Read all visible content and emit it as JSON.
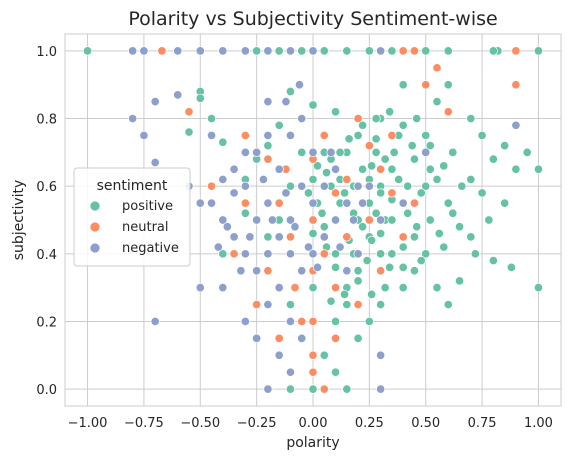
{
  "chart_data": {
    "type": "scatter",
    "title": "Polarity vs Subjectivity Sentiment-wise",
    "xlabel": "polarity",
    "ylabel": "subjectivity",
    "xlim": [
      -1.1,
      1.1
    ],
    "ylim": [
      -0.05,
      1.05
    ],
    "xticks": [
      "−1.00",
      "−0.75",
      "−0.50",
      "−0.25",
      "0.00",
      "0.25",
      "0.50",
      "0.75",
      "1.00"
    ],
    "xtick_values": [
      -1.0,
      -0.75,
      -0.5,
      -0.25,
      0.0,
      0.25,
      0.5,
      0.75,
      1.0
    ],
    "yticks": [
      "0.0",
      "0.2",
      "0.4",
      "0.6",
      "0.8",
      "1.0"
    ],
    "ytick_values": [
      0.0,
      0.2,
      0.4,
      0.6,
      0.8,
      1.0
    ],
    "grid": true,
    "legend": {
      "title": "sentiment",
      "placement": "center-left"
    },
    "series": [
      {
        "name": "positive",
        "color": "#66c2a5",
        "points": [
          [
            -1.0,
            1.0
          ],
          [
            -0.55,
            0.76
          ],
          [
            -0.5,
            0.88
          ],
          [
            -0.5,
            0.86
          ],
          [
            -0.45,
            0.8
          ],
          [
            -0.4,
            0.73
          ],
          [
            -0.4,
            0.4
          ],
          [
            -0.35,
            0.58
          ],
          [
            -0.3,
            0.52
          ],
          [
            -0.3,
            0.62
          ],
          [
            -0.25,
            0.68
          ],
          [
            -0.2,
            0.72
          ],
          [
            -0.2,
            0.45
          ],
          [
            -0.15,
            0.78
          ],
          [
            -0.15,
            0.5
          ],
          [
            -0.1,
            0.88
          ],
          [
            -0.1,
            0.6
          ],
          [
            -0.05,
            0.7
          ],
          [
            0.0,
            0.84
          ],
          [
            0.0,
            0.62
          ],
          [
            0.02,
            0.55
          ],
          [
            0.05,
            0.7
          ],
          [
            0.05,
            0.48
          ],
          [
            0.08,
            0.6
          ],
          [
            0.1,
            0.82
          ],
          [
            0.1,
            0.65
          ],
          [
            0.1,
            0.4
          ],
          [
            0.12,
            0.55
          ],
          [
            0.15,
            0.7
          ],
          [
            0.15,
            0.3
          ],
          [
            0.18,
            0.6
          ],
          [
            0.2,
            0.5
          ],
          [
            0.2,
            0.75
          ],
          [
            0.22,
            0.65
          ],
          [
            0.25,
            0.55
          ],
          [
            0.25,
            0.45
          ],
          [
            0.28,
            0.7
          ],
          [
            0.3,
            0.6
          ],
          [
            0.3,
            0.8
          ],
          [
            0.32,
            0.5
          ],
          [
            0.35,
            0.65
          ],
          [
            0.35,
            0.4
          ],
          [
            0.38,
            0.75
          ],
          [
            0.4,
            0.55
          ],
          [
            0.4,
            0.9
          ],
          [
            0.42,
            0.6
          ],
          [
            0.45,
            0.68
          ],
          [
            0.45,
            0.45
          ],
          [
            0.5,
            0.75
          ],
          [
            0.5,
            0.6
          ],
          [
            0.52,
            0.5
          ],
          [
            0.55,
            0.85
          ],
          [
            0.55,
            0.62
          ],
          [
            0.58,
            0.42
          ],
          [
            0.6,
            0.9
          ],
          [
            0.6,
            0.55
          ],
          [
            0.62,
            0.7
          ],
          [
            0.65,
            0.48
          ],
          [
            0.65,
            0.32
          ],
          [
            0.7,
            0.62
          ],
          [
            0.7,
            0.8
          ],
          [
            0.72,
            0.4
          ],
          [
            0.75,
            0.58
          ],
          [
            0.75,
            0.75
          ],
          [
            0.78,
            0.5
          ],
          [
            0.8,
            0.68
          ],
          [
            0.8,
            0.38
          ],
          [
            0.85,
            0.72
          ],
          [
            0.85,
            0.55
          ],
          [
            0.88,
            0.36
          ],
          [
            0.9,
            0.65
          ],
          [
            1.0,
            0.65
          ],
          [
            1.0,
            0.3
          ],
          [
            0.95,
            0.7
          ],
          [
            0.82,
            1.0
          ],
          [
            1.0,
            1.0
          ],
          [
            0.8,
            1.0
          ],
          [
            0.6,
            1.0
          ],
          [
            0.5,
            1.0
          ],
          [
            0.35,
            1.0
          ],
          [
            0.25,
            1.0
          ],
          [
            0.15,
            1.0
          ],
          [
            0.05,
            1.0
          ],
          [
            -0.05,
            1.0
          ],
          [
            -0.15,
            1.0
          ],
          [
            -0.25,
            1.0
          ],
          [
            0.0,
            0.0
          ],
          [
            0.15,
            0.0
          ],
          [
            -0.1,
            0.0
          ],
          [
            0.1,
            0.05
          ],
          [
            0.05,
            0.1
          ],
          [
            0.2,
            0.15
          ],
          [
            0.25,
            0.2
          ],
          [
            0.3,
            0.25
          ],
          [
            0.4,
            0.3
          ],
          [
            0.45,
            0.35
          ],
          [
            0.1,
            0.2
          ],
          [
            0.15,
            0.25
          ],
          [
            0.2,
            0.35
          ],
          [
            0.0,
            0.3
          ],
          [
            -0.05,
            0.15
          ],
          [
            -0.1,
            0.25
          ],
          [
            0.3,
            0.4
          ],
          [
            0.35,
            0.5
          ],
          [
            0.6,
            0.25
          ],
          [
            0.55,
            0.3
          ],
          [
            0.7,
            0.45
          ],
          [
            0.25,
            0.62
          ],
          [
            0.3,
            0.58
          ],
          [
            0.35,
            0.56
          ],
          [
            0.28,
            0.52
          ],
          [
            0.22,
            0.48
          ],
          [
            0.18,
            0.52
          ],
          [
            0.12,
            0.62
          ],
          [
            0.08,
            0.68
          ],
          [
            0.32,
            0.68
          ],
          [
            0.38,
            0.62
          ],
          [
            0.42,
            0.52
          ],
          [
            0.48,
            0.58
          ],
          [
            0.2,
            0.6
          ],
          [
            0.26,
            0.66
          ],
          [
            0.16,
            0.44
          ],
          [
            0.1,
            0.36
          ],
          [
            0.06,
            0.42
          ],
          [
            0.24,
            0.38
          ],
          [
            0.4,
            0.42
          ],
          [
            0.46,
            0.48
          ],
          [
            0.5,
            0.4
          ],
          [
            0.52,
            0.65
          ],
          [
            0.44,
            0.72
          ],
          [
            0.36,
            0.7
          ],
          [
            0.28,
            0.74
          ],
          [
            0.14,
            0.58
          ],
          [
            0.04,
            0.52
          ],
          [
            0.0,
            0.46
          ],
          [
            -0.02,
            0.58
          ],
          [
            0.3,
            0.46
          ],
          [
            0.34,
            0.36
          ],
          [
            0.2,
            0.32
          ],
          [
            0.14,
            0.28
          ],
          [
            0.08,
            0.26
          ],
          [
            0.26,
            0.28
          ],
          [
            0.32,
            0.3
          ],
          [
            0.4,
            0.36
          ],
          [
            0.48,
            0.38
          ],
          [
            0.56,
            0.46
          ],
          [
            0.62,
            0.52
          ],
          [
            0.66,
            0.6
          ],
          [
            0.58,
            0.66
          ],
          [
            0.52,
            0.72
          ],
          [
            0.46,
            0.8
          ],
          [
            0.4,
            0.78
          ],
          [
            0.34,
            0.82
          ],
          [
            0.28,
            0.8
          ],
          [
            0.22,
            0.78
          ],
          [
            0.16,
            0.74
          ],
          [
            0.12,
            0.7
          ],
          [
            0.06,
            0.64
          ],
          [
            0.02,
            0.66
          ],
          [
            0.1,
            0.5
          ],
          [
            0.18,
            0.4
          ],
          [
            0.26,
            0.44
          ]
        ]
      },
      {
        "name": "neutral",
        "color": "#fc8d62",
        "points": [
          [
            -0.8,
            1.0
          ],
          [
            -0.67,
            1.0
          ],
          [
            -0.6,
            1.0
          ],
          [
            -0.55,
            0.82
          ],
          [
            -0.45,
            0.6
          ],
          [
            -0.35,
            0.4
          ],
          [
            -0.3,
            0.75
          ],
          [
            -0.25,
            0.25
          ],
          [
            -0.2,
            0.35
          ],
          [
            -0.15,
            0.55
          ],
          [
            -0.1,
            0.45
          ],
          [
            -0.08,
            0.3
          ],
          [
            -0.05,
            0.6
          ],
          [
            0.0,
            0.5
          ],
          [
            0.0,
            0.35
          ],
          [
            0.0,
            0.1
          ],
          [
            0.0,
            0.05
          ],
          [
            0.0,
            0.68
          ],
          [
            0.0,
            0.2
          ],
          [
            0.05,
            0.4
          ],
          [
            0.05,
            0.75
          ],
          [
            0.1,
            0.3
          ],
          [
            0.1,
            0.58
          ],
          [
            0.15,
            0.45
          ],
          [
            0.2,
            0.8
          ],
          [
            0.25,
            0.5
          ],
          [
            0.3,
            0.35
          ],
          [
            0.3,
            0.65
          ],
          [
            0.35,
            0.75
          ],
          [
            0.4,
            0.45
          ],
          [
            0.45,
            0.55
          ],
          [
            0.5,
            0.9
          ],
          [
            0.55,
            0.95
          ],
          [
            0.6,
            0.82
          ],
          [
            0.4,
            1.0
          ],
          [
            0.45,
            1.0
          ],
          [
            0.3,
            1.0
          ],
          [
            0.9,
            0.9
          ],
          [
            0.9,
            1.0
          ],
          [
            -0.15,
            0.15
          ],
          [
            0.05,
            0.0
          ],
          [
            -0.05,
            0.2
          ],
          [
            0.1,
            0.15
          ],
          [
            0.2,
            0.25
          ],
          [
            0.15,
            0.62
          ],
          [
            0.35,
            0.58
          ],
          [
            -0.12,
            0.65
          ],
          [
            -0.3,
            0.55
          ],
          [
            -0.2,
            0.68
          ],
          [
            0.25,
            0.72
          ]
        ]
      },
      {
        "name": "negative",
        "color": "#8da0cb",
        "points": [
          [
            -0.8,
            1.0
          ],
          [
            -0.75,
            1.0
          ],
          [
            -0.6,
            1.0
          ],
          [
            -0.5,
            1.0
          ],
          [
            -0.4,
            1.0
          ],
          [
            -0.3,
            1.0
          ],
          [
            -0.2,
            1.0
          ],
          [
            -0.1,
            1.0
          ],
          [
            0.0,
            1.0
          ],
          [
            0.3,
            1.0
          ],
          [
            -0.8,
            0.8
          ],
          [
            -0.75,
            0.75
          ],
          [
            -0.7,
            0.85
          ],
          [
            -0.7,
            0.67
          ],
          [
            -0.7,
            0.2
          ],
          [
            -0.6,
            0.87
          ],
          [
            -0.55,
            0.6
          ],
          [
            -0.5,
            0.55
          ],
          [
            -0.5,
            0.3
          ],
          [
            -0.45,
            0.75
          ],
          [
            -0.4,
            0.5
          ],
          [
            -0.4,
            0.3
          ],
          [
            -0.35,
            0.45
          ],
          [
            -0.35,
            0.65
          ],
          [
            -0.3,
            0.6
          ],
          [
            -0.3,
            0.4
          ],
          [
            -0.3,
            0.2
          ],
          [
            -0.25,
            0.5
          ],
          [
            -0.25,
            0.7
          ],
          [
            -0.25,
            0.35
          ],
          [
            -0.2,
            0.55
          ],
          [
            -0.2,
            0.85
          ],
          [
            -0.2,
            0.4
          ],
          [
            -0.2,
            0.0
          ],
          [
            -0.15,
            0.65
          ],
          [
            -0.15,
            0.45
          ],
          [
            -0.15,
            0.3
          ],
          [
            -0.1,
            0.5
          ],
          [
            -0.1,
            0.75
          ],
          [
            -0.1,
            0.4
          ],
          [
            -0.1,
            0.2
          ],
          [
            -0.05,
            0.6
          ],
          [
            -0.05,
            0.35
          ],
          [
            -0.05,
            0.8
          ],
          [
            0.0,
            0.55
          ],
          [
            0.0,
            0.4
          ],
          [
            0.0,
            0.7
          ],
          [
            0.05,
            0.6
          ],
          [
            0.05,
            0.45
          ],
          [
            0.1,
            0.65
          ],
          [
            0.1,
            0.5
          ],
          [
            0.15,
            0.55
          ],
          [
            0.2,
            0.6
          ],
          [
            0.2,
            0.4
          ],
          [
            0.25,
            0.6
          ],
          [
            0.3,
            0.5
          ],
          [
            0.3,
            0.1
          ],
          [
            0.3,
            0.0
          ],
          [
            0.4,
            0.55
          ],
          [
            0.5,
            0.7
          ],
          [
            0.9,
            0.78
          ],
          [
            -0.1,
            0.05
          ],
          [
            -0.15,
            0.1
          ],
          [
            -0.05,
            0.15
          ],
          [
            -0.2,
            0.25
          ],
          [
            -0.25,
            0.15
          ],
          [
            -0.35,
            0.58
          ],
          [
            -0.4,
            0.62
          ],
          [
            -0.45,
            0.55
          ],
          [
            -0.3,
            0.7
          ],
          [
            -0.2,
            0.75
          ],
          [
            -0.12,
            0.58
          ],
          [
            -0.08,
            0.48
          ],
          [
            -0.02,
            0.42
          ],
          [
            0.02,
            0.36
          ],
          [
            -0.18,
            0.5
          ],
          [
            -0.22,
            0.62
          ],
          [
            -0.28,
            0.45
          ],
          [
            -0.32,
            0.35
          ],
          [
            -0.38,
            0.48
          ],
          [
            -0.42,
            0.42
          ],
          [
            0.08,
            0.7
          ],
          [
            0.12,
            0.42
          ],
          [
            0.18,
            0.5
          ],
          [
            -0.06,
            0.9
          ],
          [
            -0.12,
            0.85
          ],
          [
            0.15,
            0.35
          ],
          [
            0.22,
            0.55
          ]
        ]
      }
    ]
  }
}
